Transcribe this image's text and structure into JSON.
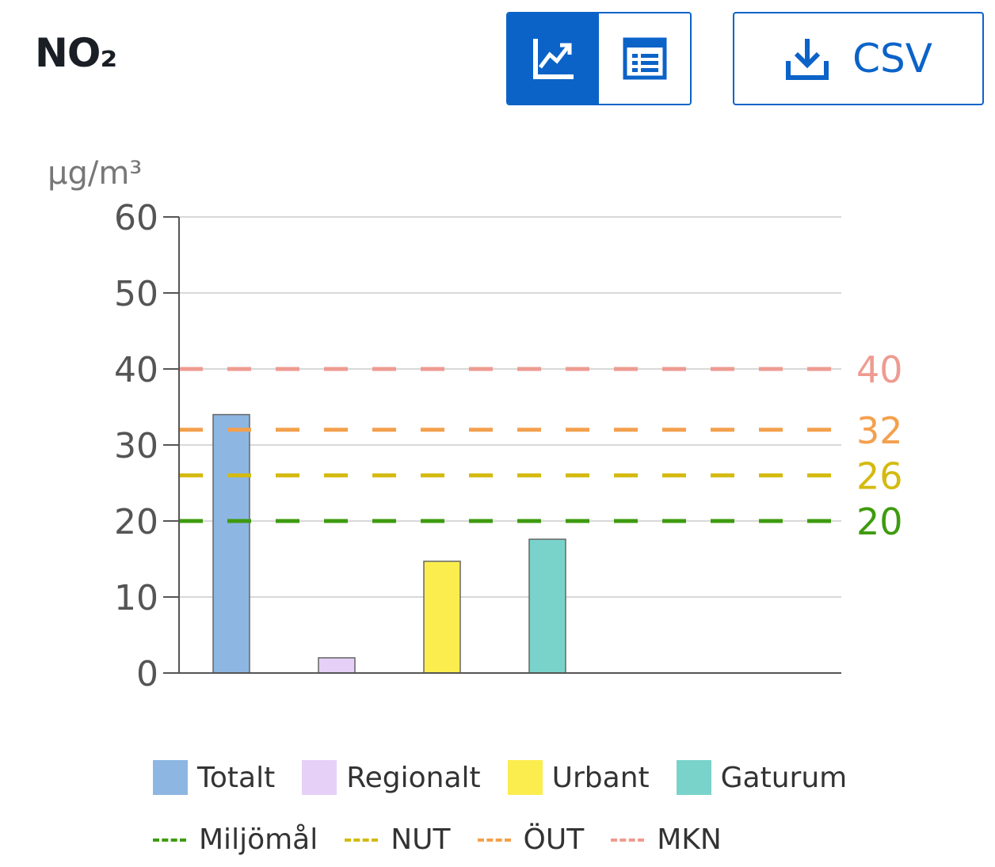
{
  "header": {
    "title": "NO₂",
    "csv_label": "CSV"
  },
  "toolbar": {
    "chart_view_icon": "chart-line-icon",
    "table_view_icon": "table-icon",
    "download_icon": "download-icon",
    "accent_color": "#0b63c8"
  },
  "chart_data": {
    "type": "bar",
    "ylabel": "µg/m³",
    "ylim": [
      0,
      60
    ],
    "yticks": [
      0,
      10,
      20,
      30,
      40,
      50,
      60
    ],
    "grid": true,
    "categories": [
      "Totalt",
      "Regionalt",
      "Urbant",
      "Gaturum"
    ],
    "values": [
      34,
      2,
      14.7,
      17.6
    ],
    "colors": [
      "#8db6e2",
      "#e6d0f7",
      "#fbed4e",
      "#79d3cb"
    ],
    "reference_lines": [
      {
        "name": "MKN",
        "value": 40,
        "color": "#ee9b91"
      },
      {
        "name": "ÖUT",
        "value": 32,
        "color": "#f4a04d"
      },
      {
        "name": "NUT",
        "value": 26,
        "color": "#d4ba10"
      },
      {
        "name": "Miljömål",
        "value": 20,
        "color": "#3e9b0f"
      }
    ]
  },
  "legend": {
    "bars": [
      {
        "label": "Totalt",
        "color": "#8db6e2"
      },
      {
        "label": "Regionalt",
        "color": "#e6d0f7"
      },
      {
        "label": "Urbant",
        "color": "#fbed4e"
      },
      {
        "label": "Gaturum",
        "color": "#79d3cb"
      }
    ],
    "lines": [
      {
        "label": "Miljömål",
        "color": "#3e9b0f"
      },
      {
        "label": "NUT",
        "color": "#d4ba10"
      },
      {
        "label": "ÖUT",
        "color": "#f4a04d"
      },
      {
        "label": "MKN",
        "color": "#ee9b91"
      }
    ]
  }
}
